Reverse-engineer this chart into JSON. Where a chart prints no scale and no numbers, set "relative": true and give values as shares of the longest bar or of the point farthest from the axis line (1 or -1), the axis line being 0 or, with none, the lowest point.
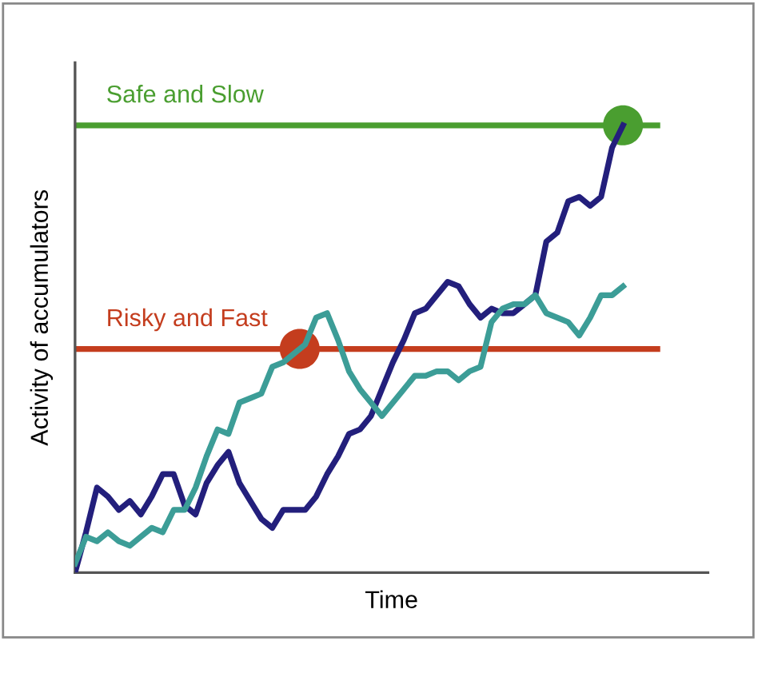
{
  "chart_data": {
    "type": "line",
    "relative": true,
    "xlabel": "Time",
    "ylabel": "Activity of accumulators",
    "legend": false,
    "marker": "none",
    "line_style": "solid",
    "categories": [
      null,
      null,
      null,
      null,
      null,
      null,
      null,
      null,
      null,
      null,
      null,
      null,
      null,
      null,
      null,
      null,
      null,
      null,
      null,
      null,
      null,
      null,
      null,
      null,
      null,
      null,
      null,
      null,
      null,
      null,
      null,
      null,
      null,
      null,
      null,
      null,
      null,
      null,
      null,
      null,
      null,
      null,
      null,
      null,
      null,
      null,
      null,
      null,
      null,
      null,
      null
    ],
    "series": [
      {
        "color": "#231f7c",
        "values": [
          0,
          0.09,
          0.19,
          0.17,
          0.14,
          0.16,
          0.13,
          0.17,
          0.22,
          0.22,
          0.15,
          0.13,
          0.2,
          0.24,
          0.27,
          0.2,
          0.16,
          0.12,
          0.1,
          0.14,
          0.14,
          0.14,
          0.17,
          0.22,
          0.26,
          0.31,
          0.32,
          0.35,
          0.41,
          0.47,
          0.52,
          0.58,
          0.59,
          0.62,
          0.65,
          0.64,
          0.6,
          0.57,
          0.59,
          0.58,
          0.58,
          0.6,
          0.62,
          0.74,
          0.76,
          0.83,
          0.84,
          0.82,
          0.84,
          0.95,
          1.0
        ]
      },
      {
        "color": "#3c9d97",
        "values": [
          0.02,
          0.08,
          0.07,
          0.09,
          0.07,
          0.06,
          0.08,
          0.1,
          0.09,
          0.14,
          0.14,
          0.19,
          0.26,
          0.32,
          0.31,
          0.38,
          0.39,
          0.4,
          0.46,
          0.47,
          0.49,
          0.51,
          0.57,
          0.58,
          0.52,
          0.45,
          0.41,
          0.38,
          0.35,
          0.38,
          0.41,
          0.44,
          0.44,
          0.45,
          0.45,
          0.43,
          0.45,
          0.46,
          0.56,
          0.59,
          0.6,
          0.6,
          0.62,
          0.58,
          0.57,
          0.56,
          0.53,
          0.57,
          0.62,
          0.62,
          0.64
        ]
      }
    ],
    "ref_lines": [
      {
        "axis": "y",
        "value": 1.0,
        "label": "Safe and Slow",
        "color": "#4a9e30"
      },
      {
        "axis": "y",
        "value": 0.5,
        "label": "Risky and Fast",
        "color": "#c43d1e"
      }
    ]
  }
}
